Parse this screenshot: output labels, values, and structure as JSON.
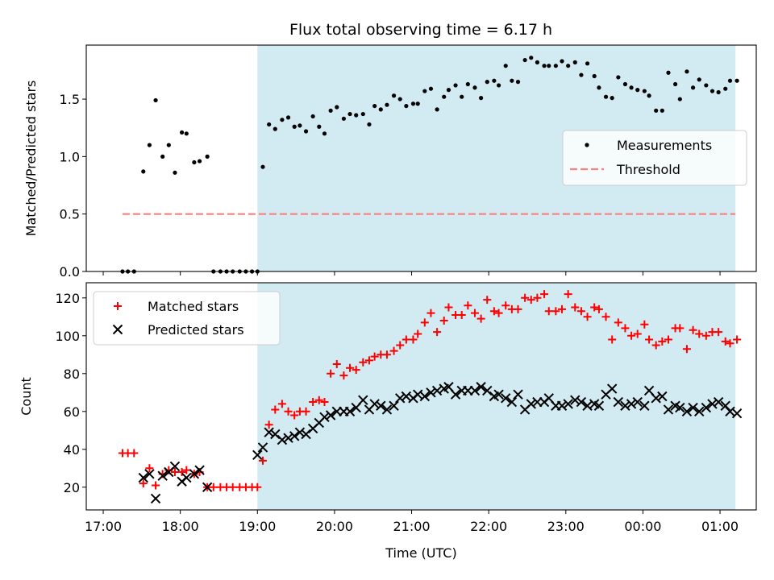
{
  "title": "Flux total observing time = 6.17 h",
  "colors": {
    "shade": "#add8e6",
    "measurement": "#000000",
    "threshold": "#ff7f7f",
    "matched": "#ff0000",
    "predicted": "#000000"
  },
  "chart_data": [
    {
      "type": "scatter",
      "ylabel": "Matched/Predicted stars",
      "ylim": [
        0,
        1.97
      ],
      "yticks": [
        "0.0",
        "0.5",
        "1.0",
        "1.5"
      ],
      "xlim": [
        -0.22,
        8.47
      ],
      "time_axis_start": "17:00",
      "shaded_region": {
        "x_start": "19:00",
        "x_end": "01:12"
      },
      "legend": {
        "position": "center-right",
        "entries": [
          "Measurements",
          "Threshold"
        ]
      },
      "threshold": {
        "value": 0.5,
        "x_start": "17:15",
        "x_end": "01:12"
      },
      "series": [
        {
          "name": "Measurements",
          "x": [
            0.25,
            0.32,
            0.4,
            0.52,
            0.6,
            0.68,
            0.77,
            0.85,
            0.93,
            1.02,
            1.08,
            1.18,
            1.25,
            1.35,
            1.43,
            1.52,
            1.6,
            1.68,
            1.77,
            1.85,
            1.93,
            2.0,
            2.07,
            2.15,
            2.23,
            2.32,
            2.4,
            2.48,
            2.55,
            2.63,
            2.72,
            2.8,
            2.87,
            2.95,
            3.03,
            3.12,
            3.2,
            3.28,
            3.37,
            3.45,
            3.52,
            3.6,
            3.68,
            3.77,
            3.85,
            3.93,
            4.02,
            4.08,
            4.17,
            4.25,
            4.33,
            4.42,
            4.48,
            4.57,
            4.65,
            4.73,
            4.82,
            4.9,
            4.98,
            5.07,
            5.13,
            5.22,
            5.3,
            5.38,
            5.47,
            5.55,
            5.63,
            5.72,
            5.78,
            5.87,
            5.95,
            6.03,
            6.12,
            6.2,
            6.28,
            6.37,
            6.43,
            6.52,
            6.6,
            6.68,
            6.77,
            6.85,
            6.93,
            7.02,
            7.08,
            7.17,
            7.25,
            7.33,
            7.42,
            7.48,
            7.57,
            7.65,
            7.73,
            7.82,
            7.9,
            7.98,
            8.07,
            8.13,
            8.22
          ],
          "y": [
            0,
            0,
            0,
            0.87,
            1.1,
            1.49,
            1.0,
            1.1,
            0.86,
            1.21,
            1.2,
            0.95,
            0.96,
            1.0,
            0,
            0,
            0,
            0,
            0,
            0,
            0,
            0,
            0.91,
            1.28,
            1.24,
            1.32,
            1.34,
            1.26,
            1.27,
            1.22,
            1.35,
            1.26,
            1.2,
            1.4,
            1.43,
            1.33,
            1.37,
            1.36,
            1.37,
            1.28,
            1.44,
            1.41,
            1.45,
            1.53,
            1.5,
            1.44,
            1.46,
            1.46,
            1.57,
            1.59,
            1.41,
            1.52,
            1.58,
            1.62,
            1.52,
            1.63,
            1.6,
            1.51,
            1.65,
            1.66,
            1.62,
            1.79,
            1.66,
            1.65,
            1.84,
            1.86,
            1.82,
            1.79,
            1.79,
            1.79,
            1.83,
            1.79,
            1.82,
            1.71,
            1.81,
            1.7,
            1.6,
            1.52,
            1.51,
            1.69,
            1.63,
            1.6,
            1.58,
            1.57,
            1.53,
            1.4,
            1.4,
            1.73,
            1.63,
            1.5,
            1.74,
            1.6,
            1.67,
            1.62,
            1.57,
            1.56,
            1.59,
            1.66,
            1.66
          ]
        }
      ]
    },
    {
      "type": "scatter",
      "ylabel": "Count",
      "xlabel": "Time (UTC)",
      "ylim": [
        8,
        128
      ],
      "yticks": [
        "20",
        "40",
        "60",
        "80",
        "100",
        "120"
      ],
      "xticks": [
        "17:00",
        "18:00",
        "19:00",
        "20:00",
        "21:00",
        "22:00",
        "23:00",
        "00:00",
        "01:00"
      ],
      "xlim": [
        -0.22,
        8.47
      ],
      "time_axis_start": "17:00",
      "shaded_region": {
        "x_start": "19:00",
        "x_end": "01:12"
      },
      "legend": {
        "position": "top-left",
        "entries": [
          "Matched stars",
          "Predicted stars"
        ]
      },
      "series": [
        {
          "name": "Matched stars",
          "x": [
            0.25,
            0.32,
            0.4,
            0.52,
            0.6,
            0.68,
            0.77,
            0.85,
            0.93,
            1.02,
            1.08,
            1.18,
            1.25,
            1.35,
            1.43,
            1.52,
            1.6,
            1.68,
            1.77,
            1.85,
            1.93,
            2.0,
            2.07,
            2.15,
            2.23,
            2.32,
            2.4,
            2.48,
            2.55,
            2.63,
            2.72,
            2.8,
            2.87,
            2.95,
            3.03,
            3.12,
            3.2,
            3.28,
            3.37,
            3.45,
            3.52,
            3.6,
            3.68,
            3.77,
            3.85,
            3.93,
            4.02,
            4.08,
            4.17,
            4.25,
            4.33,
            4.42,
            4.48,
            4.57,
            4.65,
            4.73,
            4.82,
            4.9,
            4.98,
            5.07,
            5.13,
            5.22,
            5.3,
            5.38,
            5.47,
            5.55,
            5.63,
            5.72,
            5.78,
            5.87,
            5.95,
            6.03,
            6.12,
            6.2,
            6.28,
            6.37,
            6.43,
            6.52,
            6.6,
            6.68,
            6.77,
            6.85,
            6.93,
            7.02,
            7.08,
            7.17,
            7.25,
            7.33,
            7.42,
            7.48,
            7.57,
            7.65,
            7.73,
            7.82,
            7.9,
            7.98,
            8.07,
            8.13,
            8.22
          ],
          "y": [
            38,
            38,
            38,
            22,
            30,
            21,
            27,
            29,
            28,
            28,
            29,
            27,
            28,
            20,
            20,
            20,
            20,
            20,
            20,
            20,
            20,
            20,
            34,
            53,
            61,
            64,
            60,
            58,
            60,
            60,
            65,
            66,
            65,
            80,
            85,
            79,
            83,
            82,
            86,
            87,
            89,
            90,
            90,
            92,
            95,
            98,
            98,
            101,
            107,
            112,
            102,
            108,
            115,
            111,
            111,
            116,
            112,
            109,
            119,
            113,
            112,
            116,
            114,
            114,
            120,
            119,
            120,
            122,
            113,
            113,
            114,
            122,
            115,
            113,
            110,
            115,
            114,
            110,
            98,
            107,
            104,
            100,
            101,
            106,
            98,
            95,
            97,
            98,
            104,
            104,
            93,
            103,
            101,
            100,
            102,
            102,
            97,
            96,
            98
          ]
        },
        {
          "name": "Predicted stars",
          "x": [
            0.52,
            0.6,
            0.68,
            0.77,
            0.85,
            0.93,
            1.02,
            1.08,
            1.18,
            1.25,
            1.35,
            2.0,
            2.07,
            2.15,
            2.23,
            2.32,
            2.4,
            2.48,
            2.55,
            2.63,
            2.72,
            2.8,
            2.87,
            2.95,
            3.03,
            3.12,
            3.2,
            3.28,
            3.37,
            3.45,
            3.52,
            3.6,
            3.68,
            3.77,
            3.85,
            3.93,
            4.02,
            4.08,
            4.17,
            4.25,
            4.33,
            4.42,
            4.48,
            4.57,
            4.65,
            4.73,
            4.82,
            4.9,
            4.98,
            5.07,
            5.13,
            5.22,
            5.3,
            5.38,
            5.47,
            5.55,
            5.63,
            5.72,
            5.78,
            5.87,
            5.95,
            6.03,
            6.12,
            6.2,
            6.28,
            6.37,
            6.43,
            6.52,
            6.6,
            6.68,
            6.77,
            6.85,
            6.93,
            7.02,
            7.08,
            7.17,
            7.25,
            7.33,
            7.42,
            7.48,
            7.57,
            7.65,
            7.73,
            7.82,
            7.9,
            7.98,
            8.07,
            8.13,
            8.22
          ],
          "y": [
            25,
            27,
            14,
            26,
            28,
            31,
            23,
            25,
            27,
            29,
            20,
            37,
            41,
            49,
            48,
            45,
            46,
            47,
            49,
            48,
            51,
            54,
            57,
            58,
            60,
            60,
            60,
            62,
            66,
            61,
            64,
            63,
            61,
            63,
            67,
            68,
            67,
            69,
            68,
            70,
            71,
            72,
            73,
            69,
            71,
            71,
            71,
            73,
            71,
            68,
            69,
            67,
            65,
            69,
            61,
            64,
            65,
            65,
            67,
            63,
            63,
            64,
            66,
            65,
            63,
            64,
            63,
            69,
            72,
            65,
            63,
            64,
            65,
            63,
            71,
            67,
            68,
            61,
            63,
            62,
            60,
            62,
            60,
            62,
            64,
            65,
            63,
            60,
            59
          ]
        }
      ]
    }
  ]
}
